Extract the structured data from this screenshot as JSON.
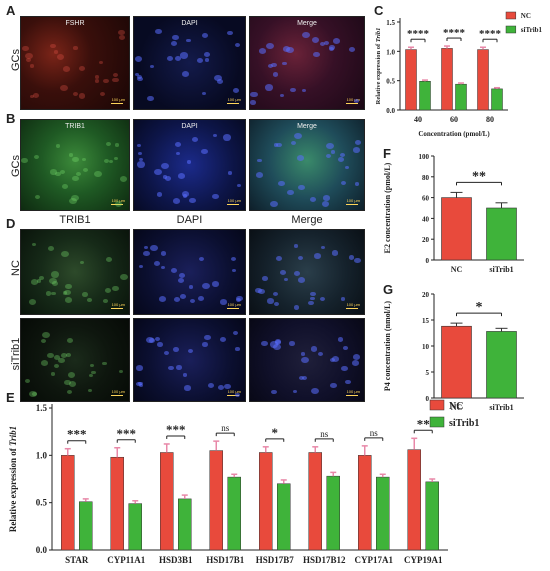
{
  "panels": {
    "A": {
      "letter": "A",
      "row_label": "GCs",
      "titles": [
        "FSHR",
        "DAPI",
        "Merge"
      ]
    },
    "B": {
      "letter": "B",
      "row_label": "GCs",
      "titles": [
        "TRIB1",
        "DAPI",
        "Merge"
      ]
    },
    "C": {
      "letter": "C"
    },
    "D": {
      "letter": "D",
      "columns": [
        "TRIB1",
        "DAPI",
        "Merge"
      ],
      "rows": [
        "NC",
        "siTrib1"
      ]
    },
    "E": {
      "letter": "E"
    },
    "F": {
      "letter": "F"
    },
    "G": {
      "letter": "G"
    }
  },
  "scale_label": "100 μm",
  "colors": {
    "nc": "#e84a3c",
    "si": "#3fb33a",
    "errbar": "#e888a8"
  },
  "chart_data": [
    {
      "id": "C",
      "type": "bar",
      "categories": [
        "40",
        "60",
        "80"
      ],
      "series": [
        {
          "name": "NC",
          "values": [
            1.03,
            1.05,
            1.03
          ],
          "errors": [
            0.04,
            0.04,
            0.04
          ]
        },
        {
          "name": "siTrib1",
          "values": [
            0.49,
            0.44,
            0.36
          ],
          "errors": [
            0.02,
            0.02,
            0.02
          ]
        }
      ],
      "significance": [
        "****",
        "****",
        "****"
      ],
      "xlabel": "Concentration (pmol/L)",
      "ylabel_prefix": "Relative expression of ",
      "ylabel_gene": "Trib1",
      "ylim": [
        0,
        1.5
      ],
      "yticks": [
        "0.0",
        "0.5",
        "1.0",
        "1.5"
      ],
      "legend": "top-right"
    },
    {
      "id": "F",
      "type": "bar",
      "categories": [
        "NC",
        "siTrib1"
      ],
      "values": [
        60,
        50
      ],
      "errors": [
        5,
        5
      ],
      "significance": [
        "**"
      ],
      "ylabel": "E2 concentration (pmol/L)",
      "ylim": [
        0,
        100
      ],
      "yticks": [
        "0",
        "20",
        "40",
        "60",
        "80",
        "100"
      ]
    },
    {
      "id": "G",
      "type": "bar",
      "categories": [
        "NC",
        "siTrib1"
      ],
      "values": [
        13.8,
        12.8
      ],
      "errors": [
        0.6,
        0.6
      ],
      "significance": [
        "*"
      ],
      "ylabel": "P4 concentration (nmol/L)",
      "ylim": [
        0,
        20
      ],
      "yticks": [
        "0",
        "5",
        "10",
        "15",
        "20"
      ]
    },
    {
      "id": "E",
      "type": "bar",
      "categories": [
        "STAR",
        "CYP11A1",
        "HSD3B1",
        "HSD17B1",
        "HSD17B7",
        "HSD17B12",
        "CYP17A1",
        "CYP19A1"
      ],
      "series": [
        {
          "name": "NC",
          "values": [
            1.0,
            0.98,
            1.03,
            1.05,
            1.03,
            1.03,
            1.0,
            1.06
          ],
          "errors": [
            0.07,
            0.1,
            0.09,
            0.1,
            0.06,
            0.06,
            0.1,
            0.12
          ]
        },
        {
          "name": "siTrib1",
          "values": [
            0.51,
            0.49,
            0.54,
            0.77,
            0.7,
            0.78,
            0.77,
            0.72
          ],
          "errors": [
            0.03,
            0.03,
            0.04,
            0.03,
            0.04,
            0.04,
            0.03,
            0.03
          ]
        }
      ],
      "significance": [
        "***",
        "***",
        "***",
        "ns",
        "*",
        "ns",
        "ns",
        "**"
      ],
      "ylabel_prefix": "Relative expression of ",
      "ylabel_gene": "Trib1",
      "ylim": [
        0,
        1.5
      ],
      "yticks": [
        "0.0",
        "0.5",
        "1.0",
        "1.5"
      ],
      "legend": "top-right"
    }
  ]
}
